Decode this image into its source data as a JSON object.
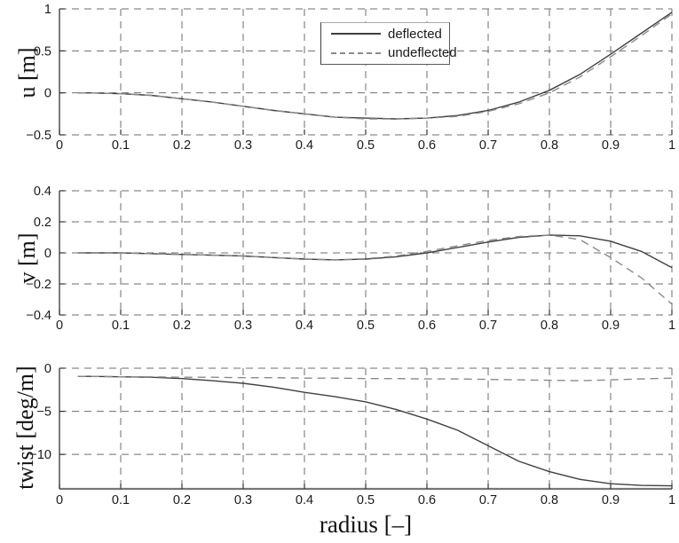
{
  "figure": {
    "xlabel": "radius [–]",
    "legend": {
      "items": [
        {
          "label": "deflected",
          "style": "solid"
        },
        {
          "label": "undeflected",
          "style": "dashed"
        }
      ]
    },
    "colors": {
      "deflected": "#404040",
      "undeflected": "#8a8a8a",
      "grid": "#6e6e6e",
      "axis": "#333333",
      "tick_text": "#1a1a1a"
    }
  },
  "chart_data": [
    {
      "type": "line",
      "ylabel": "u [m]",
      "xlim": [
        0,
        1
      ],
      "ylim": [
        -0.5,
        1
      ],
      "grid": true,
      "legend_position": "top-center",
      "bottom_edge": "dashed",
      "xticks": [
        0,
        0.1,
        0.2,
        0.3,
        0.4,
        0.5,
        0.6,
        0.7,
        0.8,
        0.9,
        1
      ],
      "xtick_labels": [
        "0",
        "0.1",
        "0.2",
        "0.3",
        "0.4",
        "0.5",
        "0.6",
        "0.7",
        "0.8",
        "0.9",
        "1"
      ],
      "yticks": [
        1,
        0.5,
        0,
        -0.5
      ],
      "ytick_labels": [
        "1",
        "0.5",
        "0",
        "−0.5"
      ],
      "x": [
        0.03,
        0.05,
        0.1,
        0.15,
        0.2,
        0.25,
        0.3,
        0.35,
        0.4,
        0.45,
        0.5,
        0.55,
        0.6,
        0.65,
        0.7,
        0.75,
        0.8,
        0.85,
        0.9,
        0.95,
        1.0
      ],
      "series": [
        {
          "name": "deflected",
          "values": [
            0,
            0,
            -0.01,
            -0.03,
            -0.07,
            -0.11,
            -0.16,
            -0.21,
            -0.25,
            -0.29,
            -0.3,
            -0.31,
            -0.3,
            -0.27,
            -0.21,
            -0.11,
            0.03,
            0.22,
            0.46,
            0.71,
            0.96
          ]
        },
        {
          "name": "undeflected",
          "values": [
            0,
            0,
            -0.01,
            -0.03,
            -0.07,
            -0.11,
            -0.16,
            -0.21,
            -0.25,
            -0.29,
            -0.31,
            -0.31,
            -0.3,
            -0.28,
            -0.22,
            -0.13,
            0.0,
            0.19,
            0.43,
            0.68,
            0.94
          ]
        }
      ]
    },
    {
      "type": "line",
      "ylabel": "v [m]",
      "xlim": [
        0,
        1
      ],
      "ylim": [
        -0.4,
        0.4
      ],
      "grid": true,
      "bottom_edge": "dashed",
      "xticks": [
        0,
        0.1,
        0.2,
        0.3,
        0.4,
        0.5,
        0.6,
        0.7,
        0.8,
        0.9,
        1
      ],
      "xtick_labels": [
        "0",
        "0.1",
        "0.2",
        "0.3",
        "0.4",
        "0.5",
        "0.6",
        "0.7",
        "0.8",
        "0.9",
        "1"
      ],
      "yticks": [
        0.4,
        0.2,
        0,
        -0.2,
        -0.4
      ],
      "ytick_labels": [
        "0.4",
        "0.2",
        "0",
        "−0.2",
        "−0.4"
      ],
      "x": [
        0.03,
        0.05,
        0.1,
        0.15,
        0.2,
        0.25,
        0.3,
        0.35,
        0.4,
        0.45,
        0.5,
        0.55,
        0.6,
        0.65,
        0.7,
        0.75,
        0.8,
        0.85,
        0.9,
        0.95,
        1.0
      ],
      "series": [
        {
          "name": "deflected",
          "values": [
            0,
            0,
            0,
            -0.005,
            -0.01,
            -0.015,
            -0.02,
            -0.03,
            -0.04,
            -0.045,
            -0.04,
            -0.025,
            0.0,
            0.035,
            0.07,
            0.1,
            0.115,
            0.11,
            0.075,
            0.01,
            -0.095
          ]
        },
        {
          "name": "undeflected",
          "values": [
            0,
            0,
            0,
            -0.005,
            -0.01,
            -0.015,
            -0.02,
            -0.03,
            -0.04,
            -0.045,
            -0.038,
            -0.02,
            0.01,
            0.045,
            0.08,
            0.105,
            0.115,
            0.085,
            -0.03,
            -0.16,
            -0.33
          ]
        }
      ]
    },
    {
      "type": "line",
      "ylabel": "twist [deg/m]",
      "xlim": [
        0,
        1
      ],
      "ylim": [
        -14,
        0
      ],
      "grid": true,
      "bottom_edge": "solid",
      "xticks": [
        0,
        0.1,
        0.2,
        0.3,
        0.4,
        0.5,
        0.6,
        0.7,
        0.8,
        0.9,
        1
      ],
      "xtick_labels": [
        "0",
        "0.1",
        "0.2",
        "0.3",
        "0.4",
        "0.5",
        "0.6",
        "0.7",
        "0.8",
        "0.9",
        "1"
      ],
      "yticks": [
        0,
        -5,
        -10
      ],
      "ytick_labels": [
        "0",
        "−5",
        "−10"
      ],
      "x": [
        0.03,
        0.05,
        0.1,
        0.15,
        0.2,
        0.25,
        0.3,
        0.35,
        0.4,
        0.45,
        0.5,
        0.55,
        0.6,
        0.65,
        0.7,
        0.75,
        0.8,
        0.85,
        0.9,
        0.95,
        1.0
      ],
      "series": [
        {
          "name": "deflected",
          "values": [
            -0.95,
            -0.95,
            -1.0,
            -1.05,
            -1.2,
            -1.45,
            -1.75,
            -2.2,
            -2.8,
            -3.3,
            -3.9,
            -4.8,
            -5.9,
            -7.2,
            -9.0,
            -10.8,
            -12.0,
            -12.9,
            -13.4,
            -13.6,
            -13.65
          ]
        },
        {
          "name": "undeflected",
          "values": [
            -0.95,
            -0.95,
            -1.0,
            -1.0,
            -1.05,
            -1.05,
            -1.1,
            -1.1,
            -1.15,
            -1.15,
            -1.2,
            -1.2,
            -1.25,
            -1.25,
            -1.3,
            -1.35,
            -1.4,
            -1.45,
            -1.35,
            -1.25,
            -1.15
          ]
        }
      ]
    }
  ]
}
